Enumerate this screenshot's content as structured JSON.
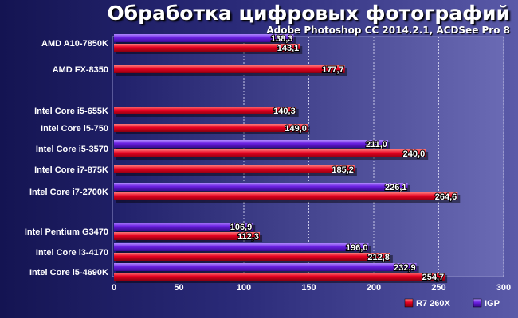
{
  "chart_data": {
    "type": "bar",
    "orientation": "horizontal",
    "title": "Обработка цифровых фотографий",
    "subtitle": "Adobe Photoshop CC 2014.2.1, ACDSee Pro 8",
    "xlim": [
      0,
      300
    ],
    "xticks": [
      "0",
      "50",
      "100",
      "150",
      "200",
      "250",
      "300"
    ],
    "grid": true,
    "legend_position": "bottom-right",
    "categories": [
      "AMD A10-7850K",
      "AMD FX-8350",
      "Intel Core i5-655K",
      "Intel Core i5-750",
      "Intel Core i5-3570",
      "Intel Core i7-875K",
      "Intel Core i7-2700K",
      "Intel Pentium G3470",
      "Intel Core i3-4170",
      "Intel Core i5-4690K"
    ],
    "series": [
      {
        "name": "R7 260X",
        "color": "#e0001e",
        "values": [
          143.1,
          177.7,
          140.3,
          149.0,
          240.0,
          185.2,
          264.6,
          112.3,
          212.8,
          254.7
        ],
        "labels": [
          "143,1",
          "177,7",
          "140,3",
          "149,0",
          "240,0",
          "185,2",
          "264,6",
          "112,3",
          "212,8",
          "254,7"
        ]
      },
      {
        "name": "IGP",
        "color": "#6a1fe0",
        "values": [
          138.3,
          null,
          null,
          null,
          211.0,
          null,
          226.1,
          106.9,
          196.0,
          232.9
        ],
        "labels": [
          "138,3",
          "",
          "",
          "",
          "211,0",
          "",
          "226,1",
          "106,9",
          "196,0",
          "232,9"
        ]
      }
    ]
  }
}
